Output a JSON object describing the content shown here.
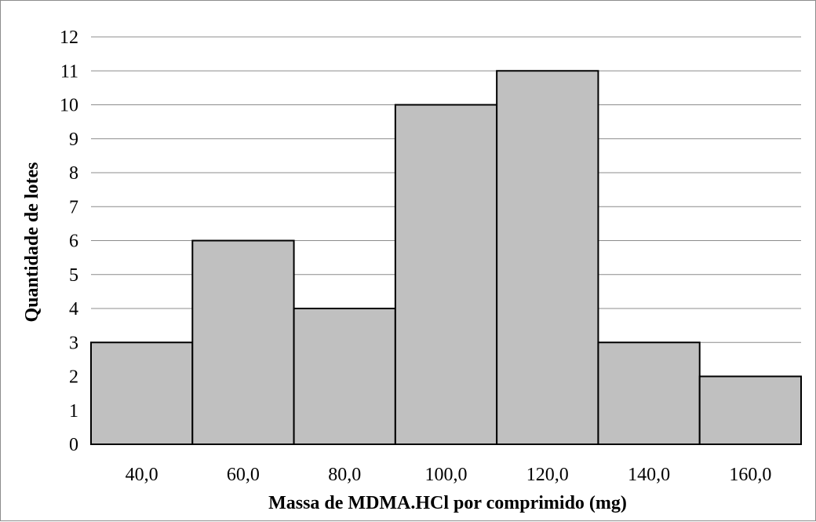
{
  "chart_data": {
    "type": "bar",
    "subtype": "histogram",
    "title": "",
    "xlabel": "Massa de MDMA.HCl por comprimido (mg)",
    "ylabel": "Quantidade de lotes",
    "categories": [
      "40,0",
      "60,0",
      "80,0",
      "100,0",
      "120,0",
      "140,0",
      "160,0"
    ],
    "values": [
      3,
      6,
      4,
      10,
      11,
      3,
      2
    ],
    "ylim": [
      0,
      12
    ],
    "yticks": [
      "0",
      "1",
      "2",
      "3",
      "4",
      "5",
      "6",
      "7",
      "8",
      "9",
      "10",
      "11",
      "12"
    ],
    "grid": true,
    "legend": "none",
    "colors": {
      "bar_fill": "#c0c0c0",
      "bar_stroke": "#000000",
      "grid": "#8c8c8c"
    }
  }
}
